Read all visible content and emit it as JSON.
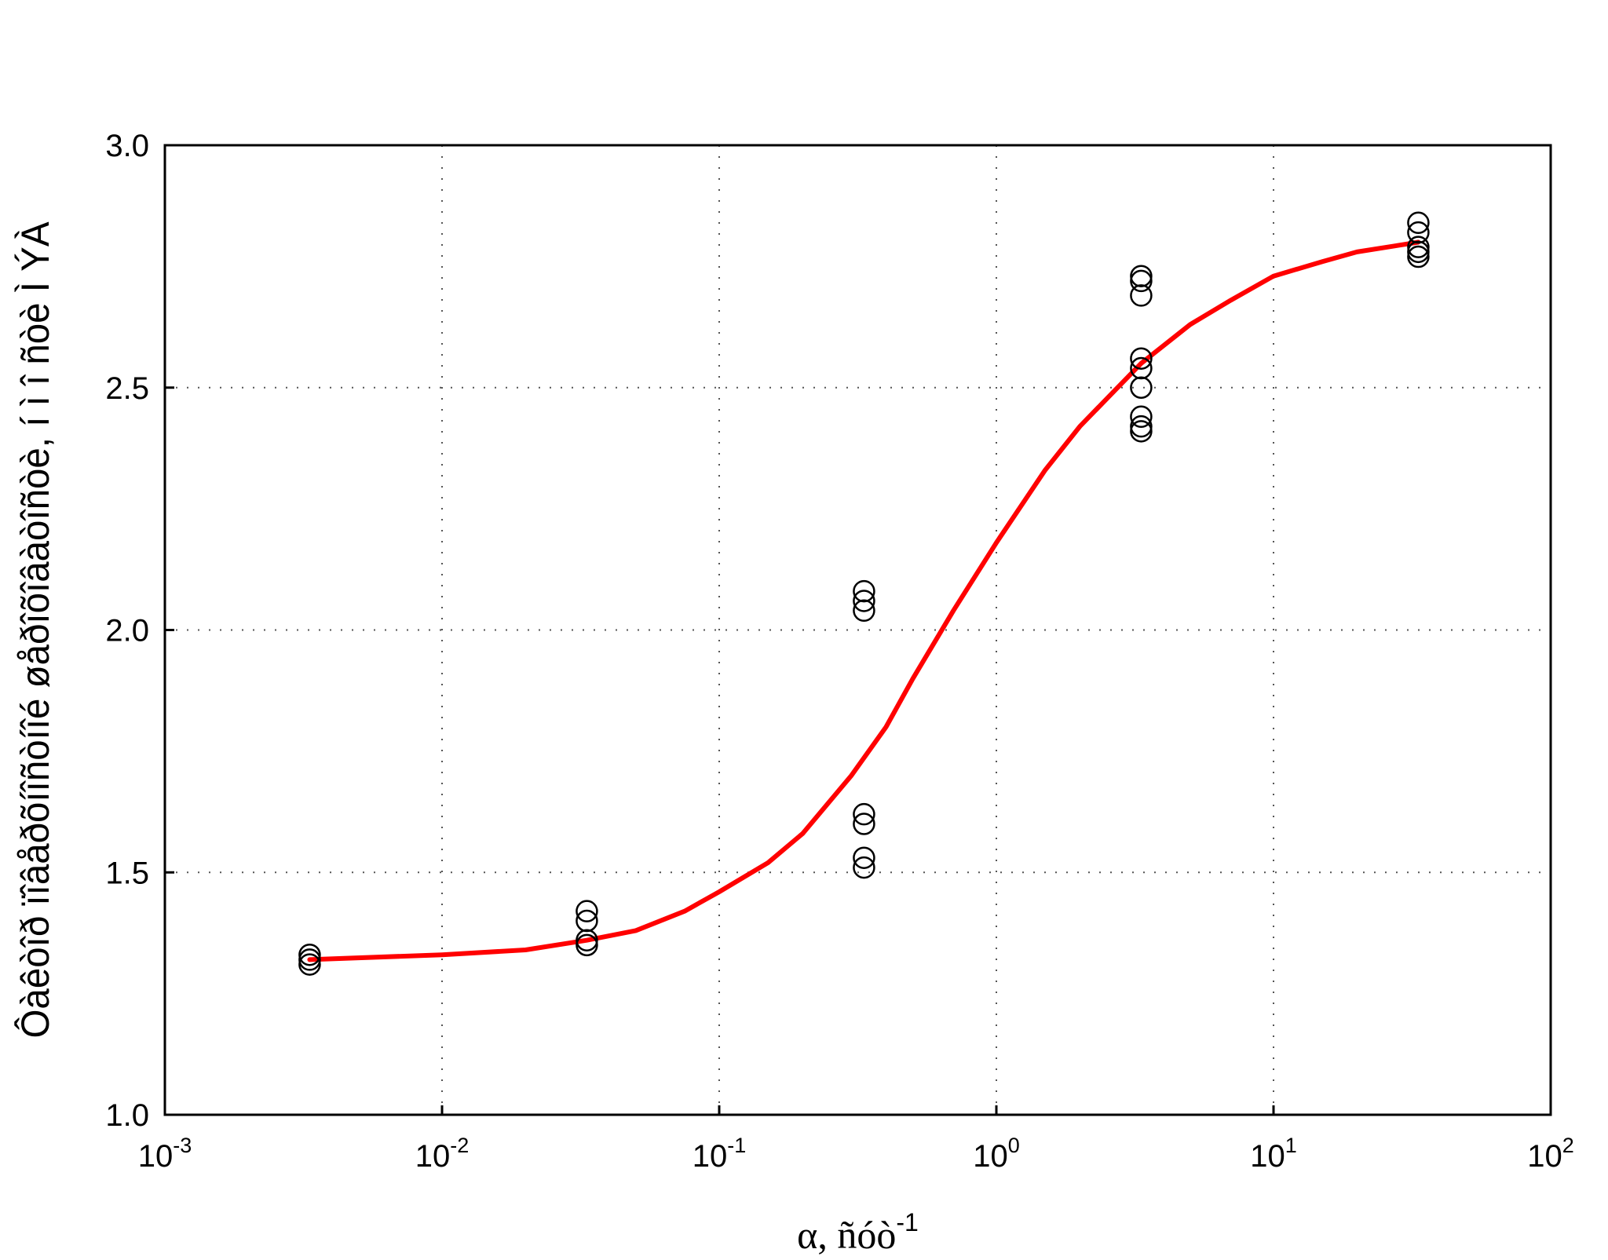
{
  "chart_data": {
    "type": "scatter",
    "xlabel": "α, ñóò",
    "xlabel_exponent": "-1",
    "ylabel": "Ôàêòîð ïîâåðõíîñòíîé øåðîõîâàòîñòè, í ì î ñòè Ì ÝÀ",
    "x_scale": "log",
    "xlim": [
      0.001,
      100
    ],
    "ylim": [
      1.0,
      3.0
    ],
    "grid": true,
    "x_ticks": [
      {
        "base": "10",
        "exp": "-3",
        "value": 0.001
      },
      {
        "base": "10",
        "exp": "-2",
        "value": 0.01
      },
      {
        "base": "10",
        "exp": "-1",
        "value": 0.1
      },
      {
        "base": "10",
        "exp": "0",
        "value": 1
      },
      {
        "base": "10",
        "exp": "1",
        "value": 10
      },
      {
        "base": "10",
        "exp": "2",
        "value": 100
      }
    ],
    "y_ticks": [
      "1.0",
      "1.5",
      "2.0",
      "2.5",
      "3.0"
    ],
    "series": [
      {
        "kind": "scatter",
        "marker": "open-circle",
        "color": "#000000",
        "points": [
          {
            "x": 0.00333,
            "y": 1.33
          },
          {
            "x": 0.00333,
            "y": 1.32
          },
          {
            "x": 0.00333,
            "y": 1.31
          },
          {
            "x": 0.0333,
            "y": 1.42
          },
          {
            "x": 0.0333,
            "y": 1.4
          },
          {
            "x": 0.0333,
            "y": 1.36
          },
          {
            "x": 0.0333,
            "y": 1.35
          },
          {
            "x": 0.333,
            "y": 2.08
          },
          {
            "x": 0.333,
            "y": 2.06
          },
          {
            "x": 0.333,
            "y": 2.04
          },
          {
            "x": 0.333,
            "y": 1.62
          },
          {
            "x": 0.333,
            "y": 1.6
          },
          {
            "x": 0.333,
            "y": 1.53
          },
          {
            "x": 0.333,
            "y": 1.51
          },
          {
            "x": 3.33,
            "y": 2.73
          },
          {
            "x": 3.33,
            "y": 2.72
          },
          {
            "x": 3.33,
            "y": 2.69
          },
          {
            "x": 3.33,
            "y": 2.56
          },
          {
            "x": 3.33,
            "y": 2.54
          },
          {
            "x": 3.33,
            "y": 2.5
          },
          {
            "x": 3.33,
            "y": 2.44
          },
          {
            "x": 3.33,
            "y": 2.42
          },
          {
            "x": 3.33,
            "y": 2.41
          },
          {
            "x": 33.3,
            "y": 2.84
          },
          {
            "x": 33.3,
            "y": 2.82
          },
          {
            "x": 33.3,
            "y": 2.79
          },
          {
            "x": 33.3,
            "y": 2.78
          },
          {
            "x": 33.3,
            "y": 2.77
          }
        ]
      },
      {
        "kind": "line",
        "color": "#ff0000",
        "points": [
          {
            "x": 0.00333,
            "y": 1.32
          },
          {
            "x": 0.01,
            "y": 1.33
          },
          {
            "x": 0.02,
            "y": 1.34
          },
          {
            "x": 0.0333,
            "y": 1.36
          },
          {
            "x": 0.05,
            "y": 1.38
          },
          {
            "x": 0.075,
            "y": 1.42
          },
          {
            "x": 0.1,
            "y": 1.46
          },
          {
            "x": 0.15,
            "y": 1.52
          },
          {
            "x": 0.2,
            "y": 1.58
          },
          {
            "x": 0.3,
            "y": 1.7
          },
          {
            "x": 0.4,
            "y": 1.8
          },
          {
            "x": 0.5,
            "y": 1.9
          },
          {
            "x": 0.7,
            "y": 2.04
          },
          {
            "x": 1.0,
            "y": 2.18
          },
          {
            "x": 1.5,
            "y": 2.33
          },
          {
            "x": 2.0,
            "y": 2.42
          },
          {
            "x": 3.33,
            "y": 2.55
          },
          {
            "x": 5.0,
            "y": 2.63
          },
          {
            "x": 7.0,
            "y": 2.68
          },
          {
            "x": 10.0,
            "y": 2.73
          },
          {
            "x": 15.0,
            "y": 2.76
          },
          {
            "x": 20.0,
            "y": 2.78
          },
          {
            "x": 33.3,
            "y": 2.8
          }
        ]
      }
    ]
  }
}
